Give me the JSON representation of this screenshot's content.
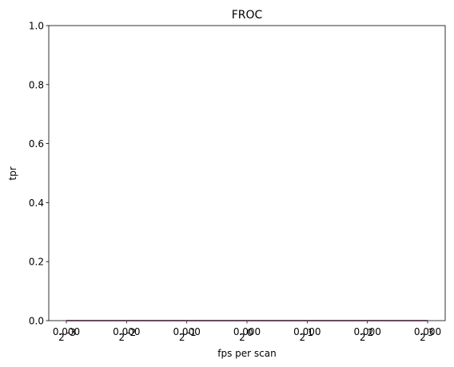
{
  "chart_data": {
    "type": "line",
    "title": "FROC",
    "xlabel": "fps per scan",
    "ylabel": "tpr",
    "x_scale": "log2",
    "x": [
      0.125,
      0.25,
      0.5,
      1,
      2,
      4,
      8
    ],
    "x_tick_labels": [
      {
        "base": "2",
        "exponent": "-3",
        "overlay": "0.000"
      },
      {
        "base": "2",
        "exponent": "-2",
        "overlay": "0.000"
      },
      {
        "base": "2",
        "exponent": "-1",
        "overlay": "0.000"
      },
      {
        "base": "2",
        "exponent": "0",
        "overlay": "0.000"
      },
      {
        "base": "2",
        "exponent": "1",
        "overlay": "0.000"
      },
      {
        "base": "2",
        "exponent": "2",
        "overlay": "0.000"
      },
      {
        "base": "2",
        "exponent": "3",
        "overlay": "0.000"
      }
    ],
    "y_ticks": [
      0.0,
      0.2,
      0.4,
      0.6,
      0.8,
      1.0
    ],
    "y_tick_labels": [
      "0.0",
      "0.2",
      "0.4",
      "0.6",
      "0.8",
      "1.0"
    ],
    "ylim": [
      0,
      1
    ],
    "grid": false,
    "series": [
      {
        "values": [
          0,
          0,
          0,
          0,
          0,
          0,
          0
        ],
        "color": "#1f77b4"
      },
      {
        "values": [
          0,
          0,
          0,
          0,
          0,
          0,
          0
        ],
        "color": "#ff7f0e"
      },
      {
        "values": [
          0,
          0,
          0,
          0,
          0,
          0,
          0
        ],
        "color": "#9467bd"
      }
    ]
  }
}
